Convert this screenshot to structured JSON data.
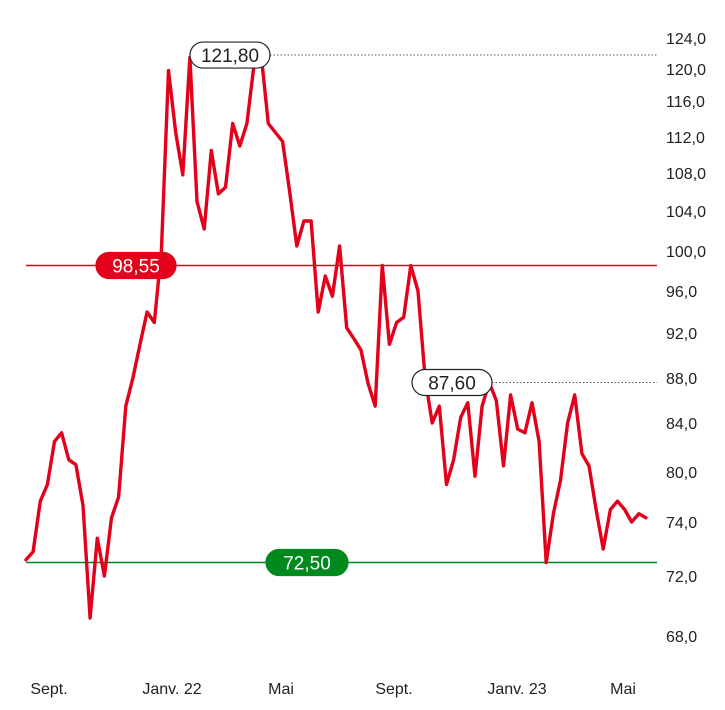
{
  "chart_data": {
    "type": "line",
    "x_ticks": [
      "Sept.",
      "Janv. 22",
      "Mai",
      "Sept.",
      "Janv. 23",
      "Mai"
    ],
    "y_ticks": [
      "124,0",
      "120,0",
      "116,0",
      "112,0",
      "108,0",
      "104,0",
      "100,0",
      "96,0",
      "92,0",
      "88,0",
      "84,0",
      "80,0",
      "74,0",
      "72,0",
      "68,0"
    ],
    "ylim": [
      66,
      125
    ],
    "series": [
      {
        "color": "#e2001a",
        "values": [
          72.6,
          72.9,
          76.5,
          78.5,
          82.5,
          83.2,
          81.0,
          80.6,
          76.0,
          69.2,
          73.4,
          72.0,
          74.5,
          77.0,
          85.5,
          88.0,
          91.0,
          94.0,
          93.0,
          100.0,
          119.8,
          112.5,
          107.8,
          121.5,
          105.0,
          102.2,
          110.5,
          105.8,
          106.5,
          113.5,
          111.0,
          113.5,
          120.5,
          121.8,
          113.5,
          112.5,
          111.5,
          106.0,
          100.5,
          103.0,
          103.0,
          94.0,
          97.5,
          95.5,
          100.5,
          92.5,
          91.5,
          90.5,
          87.5,
          85.5,
          98.55,
          91.0,
          93.0,
          93.5,
          98.55,
          96.0,
          88.0,
          84.0,
          85.5,
          78.5,
          81.0,
          84.5,
          85.8,
          79.5,
          85.5,
          87.6,
          86.0,
          80.5,
          86.5,
          83.5,
          83.2,
          85.8,
          82.5,
          72.5,
          75.0,
          79.0,
          84.0,
          86.5,
          81.5,
          80.5,
          75.5,
          73.0,
          75.5,
          76.5,
          75.5,
          74.0,
          75.0,
          74.5
        ]
      }
    ],
    "reference_lines": [
      {
        "label": "121,80",
        "value": 121.8,
        "style": "dotted",
        "color": "#555555"
      },
      {
        "label": "98,55",
        "value": 98.55,
        "style": "solid",
        "color": "#e2001a"
      },
      {
        "label": "87,60",
        "value": 87.6,
        "style": "dotted",
        "color": "#555555"
      },
      {
        "label": "72,50",
        "value": 72.5,
        "style": "solid",
        "color": "#008a1e"
      }
    ]
  }
}
